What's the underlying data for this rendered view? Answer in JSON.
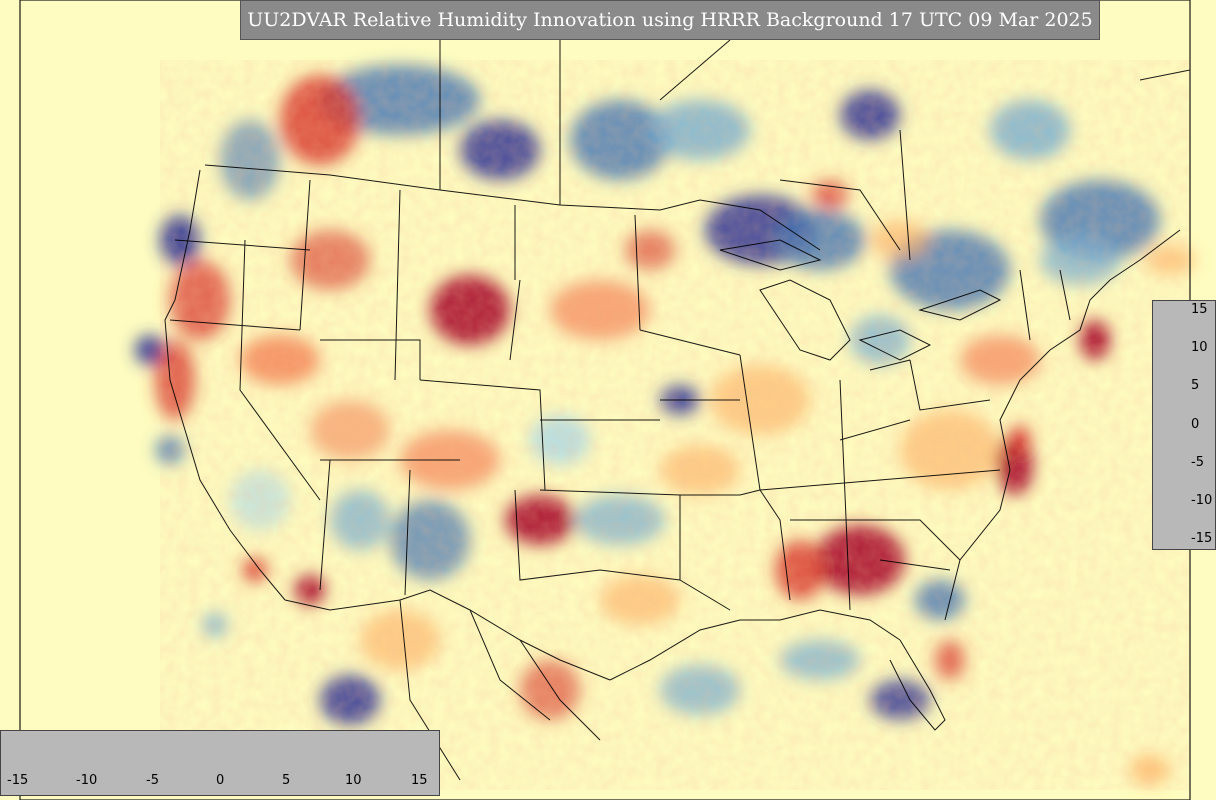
{
  "title": "UU2DVAR Relative Humidity Innovation using HRRR Background 17 UTC 09 Mar 2025",
  "colorbar": {
    "min": -15,
    "max": 15,
    "ticks_right": [
      "15",
      "10",
      "5",
      "0",
      "-5",
      "-10",
      "-15"
    ],
    "ticks_bottom": [
      "-15",
      "-10",
      "-5",
      "0",
      "5",
      "10",
      "15"
    ],
    "colors": [
      "#313695",
      "#4575b4",
      "#74add1",
      "#abd9e9",
      "#e0f3f8",
      "#ffffbf",
      "#fee090",
      "#fdae61",
      "#f46d43",
      "#d73027",
      "#a50026"
    ]
  },
  "map": {
    "background_color": "#fefcc0",
    "border_color": "#000000"
  }
}
